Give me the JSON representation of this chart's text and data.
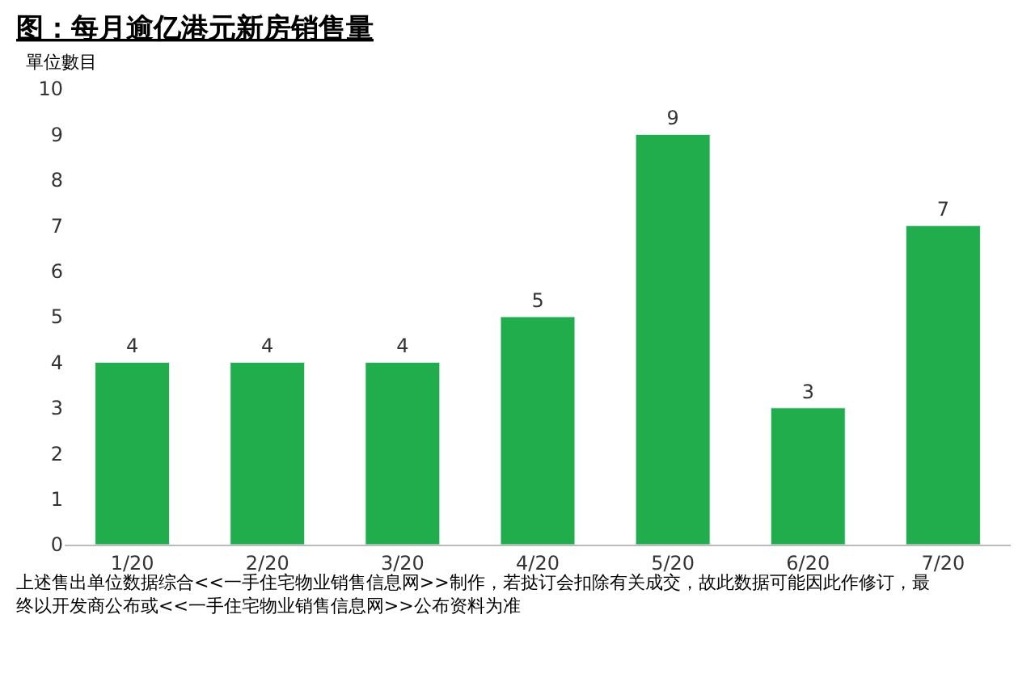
{
  "chart_data": {
    "type": "bar",
    "title": "图：每月逾亿港元新房销售量",
    "ylabel": "單位數目",
    "categories": [
      "1/20",
      "2/20",
      "3/20",
      "4/20",
      "5/20",
      "6/20",
      "7/20"
    ],
    "values": [
      4,
      4,
      4,
      5,
      9,
      3,
      7
    ],
    "color": "#21ad4b",
    "ylim": [
      0,
      10
    ],
    "yticks": [
      0,
      1,
      2,
      3,
      4,
      5,
      6,
      7,
      8,
      9,
      10
    ],
    "grid": false,
    "data_labels": true,
    "legend": false,
    "annotations": [
      "上述售出单位数据综合<<一手住宅物业销售信息网>>制作，若挞订会扣除有关成交，故此数据可能因此作修订，最终以开发商公布或<<一手住宅物业销售信息网>>公布资料为准"
    ]
  }
}
